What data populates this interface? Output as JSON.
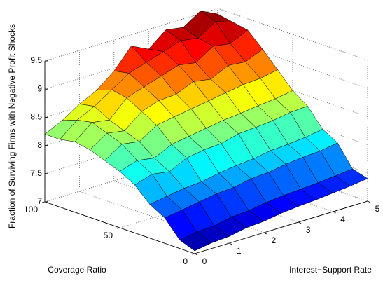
{
  "chart_data": {
    "type": "surface",
    "xlabel": "Interest−Support Rate",
    "ylabel": "Coverage Ratio",
    "zlabel": "Fraction of Surviving Firms with Negative Profit Shocks",
    "x": [
      0,
      0.5,
      1,
      1.5,
      2,
      2.5,
      3,
      3.5,
      4,
      4.5,
      5
    ],
    "y": [
      0,
      10,
      20,
      30,
      40,
      50,
      60,
      70,
      80,
      90,
      100
    ],
    "z": [
      [
        7.05,
        7.1,
        7.12,
        7.18,
        7.2,
        7.25,
        7.28,
        7.3,
        7.33,
        7.36,
        7.4
      ],
      [
        7.15,
        7.2,
        7.22,
        7.28,
        7.3,
        7.35,
        7.38,
        7.4,
        7.42,
        7.45,
        7.48
      ],
      [
        7.45,
        7.5,
        7.55,
        7.6,
        7.62,
        7.68,
        7.7,
        7.75,
        7.78,
        7.8,
        7.85
      ],
      [
        7.6,
        7.65,
        7.7,
        7.72,
        7.78,
        7.82,
        7.85,
        7.9,
        7.92,
        7.95,
        8.0
      ],
      [
        7.85,
        7.95,
        7.9,
        8.05,
        8.1,
        8.12,
        8.2,
        8.22,
        8.25,
        8.3,
        8.32
      ],
      [
        8.0,
        8.1,
        8.05,
        8.2,
        8.25,
        8.3,
        8.35,
        8.38,
        8.42,
        8.45,
        8.5
      ],
      [
        8.1,
        8.3,
        8.25,
        8.45,
        8.5,
        8.55,
        8.6,
        8.65,
        8.7,
        8.72,
        8.78
      ],
      [
        8.2,
        8.4,
        8.35,
        8.6,
        8.7,
        8.72,
        8.85,
        8.8,
        8.95,
        8.92,
        9.05
      ],
      [
        8.25,
        8.5,
        8.45,
        8.75,
        8.85,
        8.95,
        9.05,
        9.0,
        9.2,
        9.15,
        9.3
      ],
      [
        8.2,
        8.45,
        8.6,
        8.8,
        9.0,
        9.1,
        9.2,
        9.3,
        9.25,
        9.45,
        9.35
      ],
      [
        8.2,
        8.35,
        8.55,
        8.7,
        8.95,
        9.3,
        9.15,
        9.4,
        9.35,
        9.55,
        9.4
      ]
    ],
    "xlim": [
      0,
      5
    ],
    "xticks": [
      0,
      1,
      2,
      3,
      4,
      5
    ],
    "ylim": [
      0,
      100
    ],
    "yticks": [
      0,
      50,
      100
    ],
    "zlim": [
      7,
      9.5
    ],
    "zticks": [
      7,
      7.5,
      8,
      8.5,
      9,
      9.5
    ],
    "colormap": "jet",
    "grid": true
  }
}
